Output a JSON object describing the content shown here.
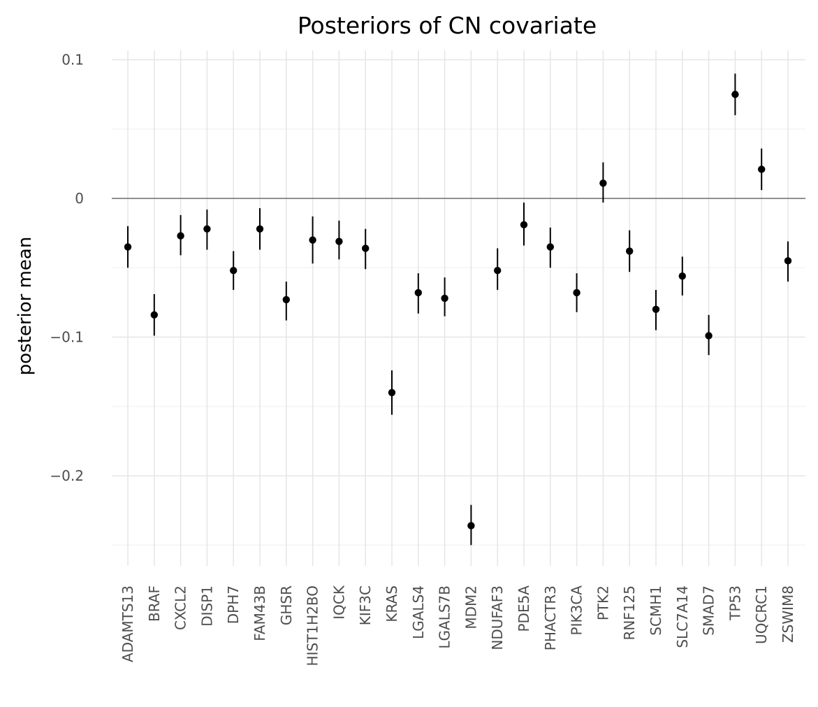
{
  "chart_data": {
    "type": "scatter",
    "title": "Posteriors of CN covariate",
    "xlabel": "",
    "ylabel": "posterior mean",
    "ylim": [
      -0.265,
      0.107
    ],
    "yticks": [
      0.1,
      0,
      -0.1,
      -0.2
    ],
    "ytick_labels": [
      "0.1",
      "0",
      "−0.1",
      "−0.2"
    ],
    "reference_line": 0,
    "grid": true,
    "categories": [
      "ADAMTS13",
      "BRAF",
      "CXCL2",
      "DISP1",
      "DPH7",
      "FAM43B",
      "GHSR",
      "HIST1H2BO",
      "IQCK",
      "KIF3C",
      "KRAS",
      "LGALS4",
      "LGALS7B",
      "MDM2",
      "NDUFAF3",
      "PDE5A",
      "PHACTR3",
      "PIK3CA",
      "PTK2",
      "RNF125",
      "SCMH1",
      "SLC7A14",
      "SMAD7",
      "TP53",
      "UQCRC1",
      "ZSWIM8"
    ],
    "values": [
      -0.035,
      -0.084,
      -0.027,
      -0.022,
      -0.052,
      -0.022,
      -0.073,
      -0.03,
      -0.031,
      -0.036,
      -0.14,
      -0.068,
      -0.072,
      -0.236,
      -0.052,
      -0.019,
      -0.035,
      -0.068,
      0.011,
      -0.038,
      -0.08,
      -0.056,
      -0.099,
      0.075,
      0.021,
      -0.045
    ],
    "lower": [
      -0.05,
      -0.099,
      -0.041,
      -0.037,
      -0.066,
      -0.037,
      -0.088,
      -0.047,
      -0.044,
      -0.051,
      -0.156,
      -0.083,
      -0.085,
      -0.25,
      -0.066,
      -0.034,
      -0.05,
      -0.082,
      -0.003,
      -0.053,
      -0.095,
      -0.07,
      -0.113,
      0.06,
      0.006,
      -0.06
    ],
    "upper": [
      -0.02,
      -0.069,
      -0.012,
      -0.008,
      -0.038,
      -0.007,
      -0.06,
      -0.013,
      -0.016,
      -0.022,
      -0.124,
      -0.054,
      -0.057,
      -0.221,
      -0.036,
      -0.003,
      -0.021,
      -0.054,
      0.026,
      -0.023,
      -0.066,
      -0.042,
      -0.084,
      0.09,
      0.036,
      -0.031
    ]
  }
}
